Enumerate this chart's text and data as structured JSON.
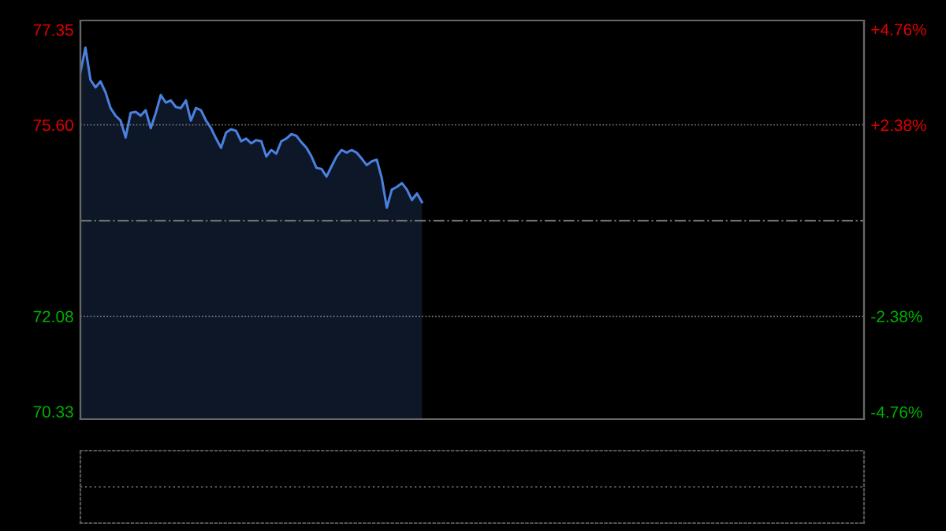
{
  "chart_data": {
    "type": "line",
    "categories": [
      null,
      null,
      null,
      null,
      null,
      null,
      null,
      null,
      null,
      null,
      null,
      null,
      null,
      null,
      null,
      null,
      null,
      null,
      null,
      null,
      null,
      null,
      null,
      null,
      null,
      null,
      null,
      null,
      null,
      null,
      null,
      null,
      null,
      null,
      null,
      null,
      null,
      null,
      null,
      null,
      null,
      null,
      null,
      null,
      null,
      null,
      null,
      null,
      null,
      null,
      null,
      null,
      null,
      null,
      null,
      null,
      null,
      null,
      null,
      null,
      null,
      null,
      null,
      null,
      null,
      null,
      null,
      null,
      null,
      null,
      null,
      null,
      null,
      null,
      null,
      null,
      null,
      null,
      null,
      null,
      null,
      null,
      null,
      null,
      null,
      null,
      null,
      null,
      null,
      null,
      null,
      null,
      null,
      null,
      null,
      null,
      null,
      null,
      null,
      null,
      null,
      null,
      null,
      null,
      null,
      null,
      null,
      null,
      null,
      null,
      null,
      null,
      null,
      null,
      null,
      null,
      null,
      null,
      null,
      null,
      null,
      null,
      null,
      null,
      null,
      null,
      null,
      null,
      null,
      null,
      null,
      null,
      null,
      null,
      null,
      null,
      null,
      null,
      null,
      null,
      null,
      null,
      null,
      null,
      null,
      null,
      null,
      null,
      null,
      null,
      null,
      null,
      null,
      null,
      null,
      null,
      null
    ],
    "series": [
      {
        "color": "#4a80e0",
        "values": [
          76.57,
          77.02,
          76.43,
          76.29,
          76.4,
          76.2,
          75.91,
          75.77,
          75.68,
          75.37,
          75.82,
          75.84,
          75.77,
          75.87,
          75.54,
          75.82,
          76.15,
          76.01,
          76.05,
          75.93,
          75.91,
          76.05,
          75.68,
          75.91,
          75.87,
          75.68,
          75.54,
          75.35,
          75.18,
          75.46,
          75.52,
          75.49,
          75.3,
          75.35,
          75.26,
          75.32,
          75.3,
          75.02,
          75.14,
          75.07,
          75.3,
          75.35,
          75.43,
          75.4,
          75.28,
          75.18,
          75.02,
          74.81,
          74.79,
          74.65,
          74.84,
          75.02,
          75.14,
          75.09,
          75.14,
          75.09,
          74.98,
          74.86,
          74.93,
          74.96,
          74.62,
          74.08,
          74.41,
          74.46,
          74.53,
          74.41,
          74.22,
          74.34,
          74.18,
          null,
          null,
          null,
          null,
          null,
          null,
          null,
          null,
          null,
          null,
          null,
          null,
          null,
          null,
          null,
          null,
          null,
          null,
          null,
          null,
          null,
          null,
          null,
          null,
          null,
          null,
          null,
          null,
          null,
          null,
          null,
          null,
          null,
          null,
          null,
          null,
          null,
          null,
          null,
          null,
          null,
          null,
          null,
          null,
          null,
          null,
          null,
          null,
          null,
          null,
          null,
          null,
          null,
          null,
          null,
          null,
          null,
          null,
          null,
          null,
          null,
          null,
          null,
          null,
          null,
          null,
          null,
          null,
          null,
          null,
          null,
          null,
          null,
          null,
          null,
          null,
          null,
          null,
          null,
          null,
          null,
          null,
          null,
          null,
          null,
          null,
          null,
          null
        ]
      }
    ],
    "ylim": [
      70.19,
      77.52
    ],
    "yticks": [
      {
        "value": 77.35,
        "label": "77.35"
      },
      {
        "value": 75.6,
        "label": "75.60"
      },
      {
        "value": 72.08,
        "label": "72.08"
      },
      {
        "value": 70.33,
        "label": "70.33"
      }
    ],
    "y2lim": [
      -4.94,
      4.98
    ],
    "y2ticks": [
      {
        "value": 4.76,
        "label": "+4.76%"
      },
      {
        "value": 2.38,
        "label": "+2.38%"
      },
      {
        "value": -2.38,
        "label": "-2.38%"
      },
      {
        "value": -4.76,
        "label": "-4.76%"
      }
    ],
    "ref_lines": [
      {
        "axis": "y",
        "value": 73.84,
        "label": null,
        "color": "#707070",
        "line_style": "dashdot"
      }
    ],
    "grid": "y",
    "tick_labels": "y",
    "legend": false
  }
}
